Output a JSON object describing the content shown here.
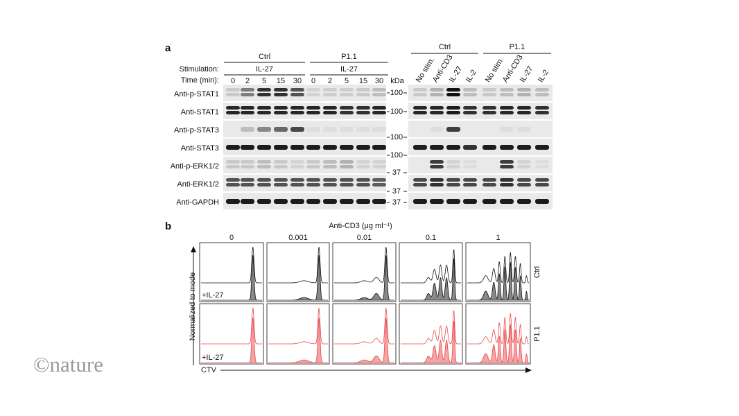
{
  "panel_a": {
    "label": "a",
    "left": {
      "groups": [
        {
          "name": "Ctrl",
          "stimulation": "IL-27",
          "times": [
            "0",
            "2",
            "5",
            "15",
            "30"
          ]
        },
        {
          "name": "P1.1",
          "stimulation": "IL-27",
          "times": [
            "0",
            "2",
            "5",
            "15",
            "30"
          ]
        }
      ],
      "stimulation_label": "Stimulation:",
      "time_label": "Time (min):",
      "rows": [
        "Anti-p-STAT1",
        "Anti-STAT1",
        "Anti-p-STAT3",
        "Anti-STAT3",
        "Anti-p-ERK1/2",
        "Anti-ERK1/2",
        "Anti-GAPDH"
      ]
    },
    "kda_label": "kDa",
    "markers": [
      "100",
      "100",
      "100",
      "100",
      "37",
      "37",
      "37"
    ],
    "right": {
      "groups": [
        "Ctrl",
        "P1.1"
      ],
      "lanes": [
        "No stim.",
        "Anti-CD3",
        "IL-27",
        "IL-2",
        "No stim.",
        "Anti-CD3",
        "IL-27",
        "IL-2"
      ]
    }
  },
  "panel_b": {
    "label": "b",
    "title": "Anti-CD3 (μg ml⁻¹)",
    "concentrations": [
      "0",
      "0.001",
      "0.01",
      "0.1",
      "1"
    ],
    "rows": [
      "Ctrl",
      "P1.1"
    ],
    "inset_labels": [
      "+IL-27",
      "+IL-27"
    ],
    "y_label": "Normalized to mode",
    "x_label": "CTV"
  },
  "watermark": "©nature"
}
